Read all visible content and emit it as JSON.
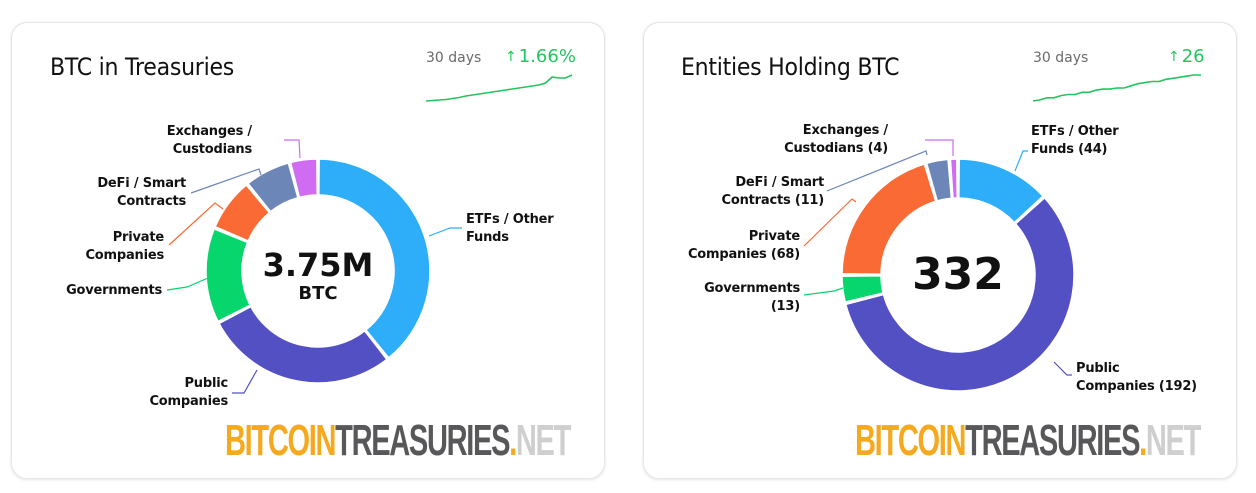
{
  "cards": [
    {
      "title": "BTC in Treasuries",
      "period_label": "30 days",
      "change_arrow": "↑",
      "change_value": "1.66%",
      "center_value": "3.75M",
      "center_unit": "BTC",
      "logo": {
        "part1": "BITCOIN",
        "part2": "TREASURIES",
        "dot": ".",
        "part3": "NET"
      },
      "labels": [
        {
          "line1": "ETFs / Other",
          "line2": "Funds"
        },
        {
          "line1": "Public",
          "line2": "Companies"
        },
        {
          "line1": "Governments",
          "line2": ""
        },
        {
          "line1": "Private",
          "line2": "Companies"
        },
        {
          "line1": "DeFi / Smart",
          "line2": "Contracts"
        },
        {
          "line1": "Exchanges /",
          "line2": "Custodians"
        }
      ]
    },
    {
      "title": "Entities Holding BTC",
      "period_label": "30 days",
      "change_arrow": "↑",
      "change_value": "26",
      "center_value": "332",
      "center_unit": "",
      "logo": {
        "part1": "BITCOIN",
        "part2": "TREASURIES",
        "dot": ".",
        "part3": "NET"
      },
      "labels": [
        {
          "line1": "ETFs / Other",
          "line2": "Funds (44)"
        },
        {
          "line1": "Public",
          "line2": "Companies (192)"
        },
        {
          "line1": "Governments",
          "line2": "(13)"
        },
        {
          "line1": "Private",
          "line2": "Companies (68)"
        },
        {
          "line1": "DeFi / Smart",
          "line2": "Contracts (11)"
        },
        {
          "line1": "Exchanges /",
          "line2": "Custodians (4)"
        }
      ]
    }
  ],
  "colors": {
    "etfs": "#2eaef8",
    "public": "#5350c4",
    "governments": "#07d66d",
    "private": "#fa6a35",
    "defi": "#6c86b8",
    "exchanges": "#cf6cf2",
    "positive": "#22c55e"
  },
  "chart_data": [
    {
      "type": "pie",
      "title": "BTC in Treasuries",
      "center_text": "3.75M BTC",
      "unit": "share of BTC (%)",
      "categories": [
        "ETFs / Other Funds",
        "Public Companies",
        "Governments",
        "Private Companies",
        "DeFi / Smart Contracts",
        "Exchanges / Custodians"
      ],
      "values": [
        39.3,
        28.1,
        13.9,
        7.8,
        6.8,
        4.1
      ],
      "note": "values estimated from segment arc angles; no numeric data labels shown",
      "trend": {
        "period": "30 days",
        "change": "+1.66%",
        "sparkline": [
          0,
          0.5,
          1,
          1.5,
          2.5,
          3.5,
          5,
          6,
          7,
          8,
          9,
          10,
          11,
          12,
          13,
          14,
          15,
          16,
          18,
          24,
          23,
          23,
          26
        ]
      }
    },
    {
      "type": "pie",
      "title": "Entities Holding BTC",
      "center_text": "332",
      "unit": "number of entities",
      "categories": [
        "ETFs / Other Funds",
        "Public Companies",
        "Governments",
        "Private Companies",
        "DeFi / Smart Contracts",
        "Exchanges / Custodians"
      ],
      "values": [
        44,
        192,
        13,
        68,
        11,
        4
      ],
      "trend": {
        "period": "30 days",
        "change": "+26",
        "sparkline": [
          0,
          1,
          3,
          3,
          5,
          6,
          6,
          8,
          8,
          10,
          11,
          11,
          12,
          12,
          14,
          16,
          17,
          18,
          18,
          20,
          21,
          22,
          23,
          24,
          24
        ]
      }
    }
  ]
}
